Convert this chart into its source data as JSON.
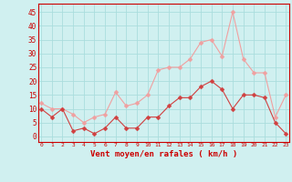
{
  "hours": [
    0,
    1,
    2,
    3,
    4,
    5,
    6,
    7,
    8,
    9,
    10,
    11,
    12,
    13,
    14,
    15,
    16,
    17,
    18,
    19,
    20,
    21,
    22,
    23
  ],
  "wind_avg": [
    10,
    7,
    10,
    2,
    3,
    1,
    3,
    7,
    3,
    3,
    7,
    7,
    11,
    14,
    14,
    18,
    20,
    17,
    10,
    15,
    15,
    14,
    5,
    1
  ],
  "wind_gust": [
    12,
    10,
    10,
    8,
    5,
    7,
    8,
    16,
    11,
    12,
    15,
    24,
    25,
    25,
    28,
    34,
    35,
    29,
    45,
    28,
    23,
    23,
    7,
    15
  ],
  "color_avg": "#d04040",
  "color_gust": "#f0a0a0",
  "bg_color": "#d0f0f0",
  "grid_color": "#aadddd",
  "axis_color": "#cc0000",
  "xlabel": "Vent moyen/en rafales ( km/h )",
  "ylim": [
    -2,
    48
  ],
  "yticks": [
    0,
    5,
    10,
    15,
    20,
    25,
    30,
    35,
    40,
    45
  ],
  "marker_size": 2.5
}
